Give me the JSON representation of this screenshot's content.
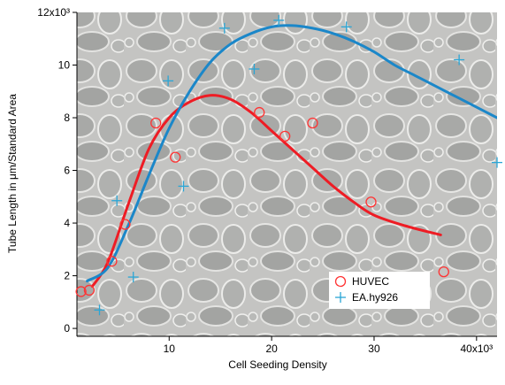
{
  "chart_data": {
    "type": "scatter",
    "xlabel": "Cell Seeding Density",
    "ylabel": "Tube Length in μm/Standard Area",
    "xlim": [
      1000,
      42000
    ],
    "ylim": [
      -300,
      12000
    ],
    "x_ticks": [
      {
        "value": 10000,
        "label": "10"
      },
      {
        "value": 20000,
        "label": "20"
      },
      {
        "value": 30000,
        "label": "30"
      },
      {
        "value": 40000,
        "label": "40x10³"
      }
    ],
    "y_ticks": [
      {
        "value": 0,
        "label": "0"
      },
      {
        "value": 2000,
        "label": "2"
      },
      {
        "value": 4000,
        "label": "4"
      },
      {
        "value": 6000,
        "label": "6"
      },
      {
        "value": 8000,
        "label": "8"
      },
      {
        "value": 10000,
        "label": "10"
      },
      {
        "value": 12000,
        "label": "12x10³"
      }
    ],
    "legend_position": "bottom-right",
    "background": "microscopy image of endothelial tube network",
    "series": [
      {
        "name": "HUVEC",
        "marker": "circle",
        "color": "#ff3333",
        "points": [
          [
            1400,
            1400
          ],
          [
            2200,
            1450
          ],
          [
            4400,
            2550
          ],
          [
            5700,
            3950
          ],
          [
            8700,
            7800
          ],
          [
            10600,
            6500
          ],
          [
            18800,
            8200
          ],
          [
            21300,
            7300
          ],
          [
            24000,
            7800
          ],
          [
            29700,
            4800
          ],
          [
            36800,
            2150
          ]
        ],
        "fit": [
          [
            2500,
            1600
          ],
          [
            4000,
            2500
          ],
          [
            6000,
            4700
          ],
          [
            8000,
            6800
          ],
          [
            10000,
            8000
          ],
          [
            12000,
            8600
          ],
          [
            14000,
            8850
          ],
          [
            16000,
            8700
          ],
          [
            18000,
            8200
          ],
          [
            20000,
            7500
          ],
          [
            22000,
            6800
          ],
          [
            24000,
            6100
          ],
          [
            26000,
            5400
          ],
          [
            28000,
            4800
          ],
          [
            30000,
            4300
          ],
          [
            33000,
            3900
          ],
          [
            36500,
            3550
          ]
        ],
        "fit_color": "#ee1c24"
      },
      {
        "name": "EA.hy926",
        "marker": "plus",
        "color": "#2aa6d6",
        "points": [
          [
            3200,
            700
          ],
          [
            4900,
            4850
          ],
          [
            6500,
            1950
          ],
          [
            9900,
            9400
          ],
          [
            11400,
            5400
          ],
          [
            15400,
            11400
          ],
          [
            18300,
            9850
          ],
          [
            20700,
            11700
          ],
          [
            27300,
            11450
          ],
          [
            38300,
            10200
          ],
          [
            42000,
            6300
          ]
        ],
        "fit": [
          [
            2000,
            1800
          ],
          [
            4000,
            2300
          ],
          [
            6000,
            3900
          ],
          [
            8000,
            5800
          ],
          [
            10000,
            7600
          ],
          [
            12000,
            9000
          ],
          [
            14000,
            10100
          ],
          [
            16000,
            10800
          ],
          [
            18000,
            11200
          ],
          [
            20000,
            11450
          ],
          [
            22000,
            11500
          ],
          [
            24000,
            11400
          ],
          [
            26000,
            11200
          ],
          [
            28000,
            10900
          ],
          [
            30000,
            10500
          ],
          [
            32000,
            10000
          ],
          [
            34000,
            9600
          ],
          [
            36000,
            9200
          ],
          [
            38000,
            8800
          ],
          [
            40000,
            8400
          ],
          [
            42000,
            8000
          ]
        ],
        "fit_color": "#1b87c9"
      }
    ]
  }
}
